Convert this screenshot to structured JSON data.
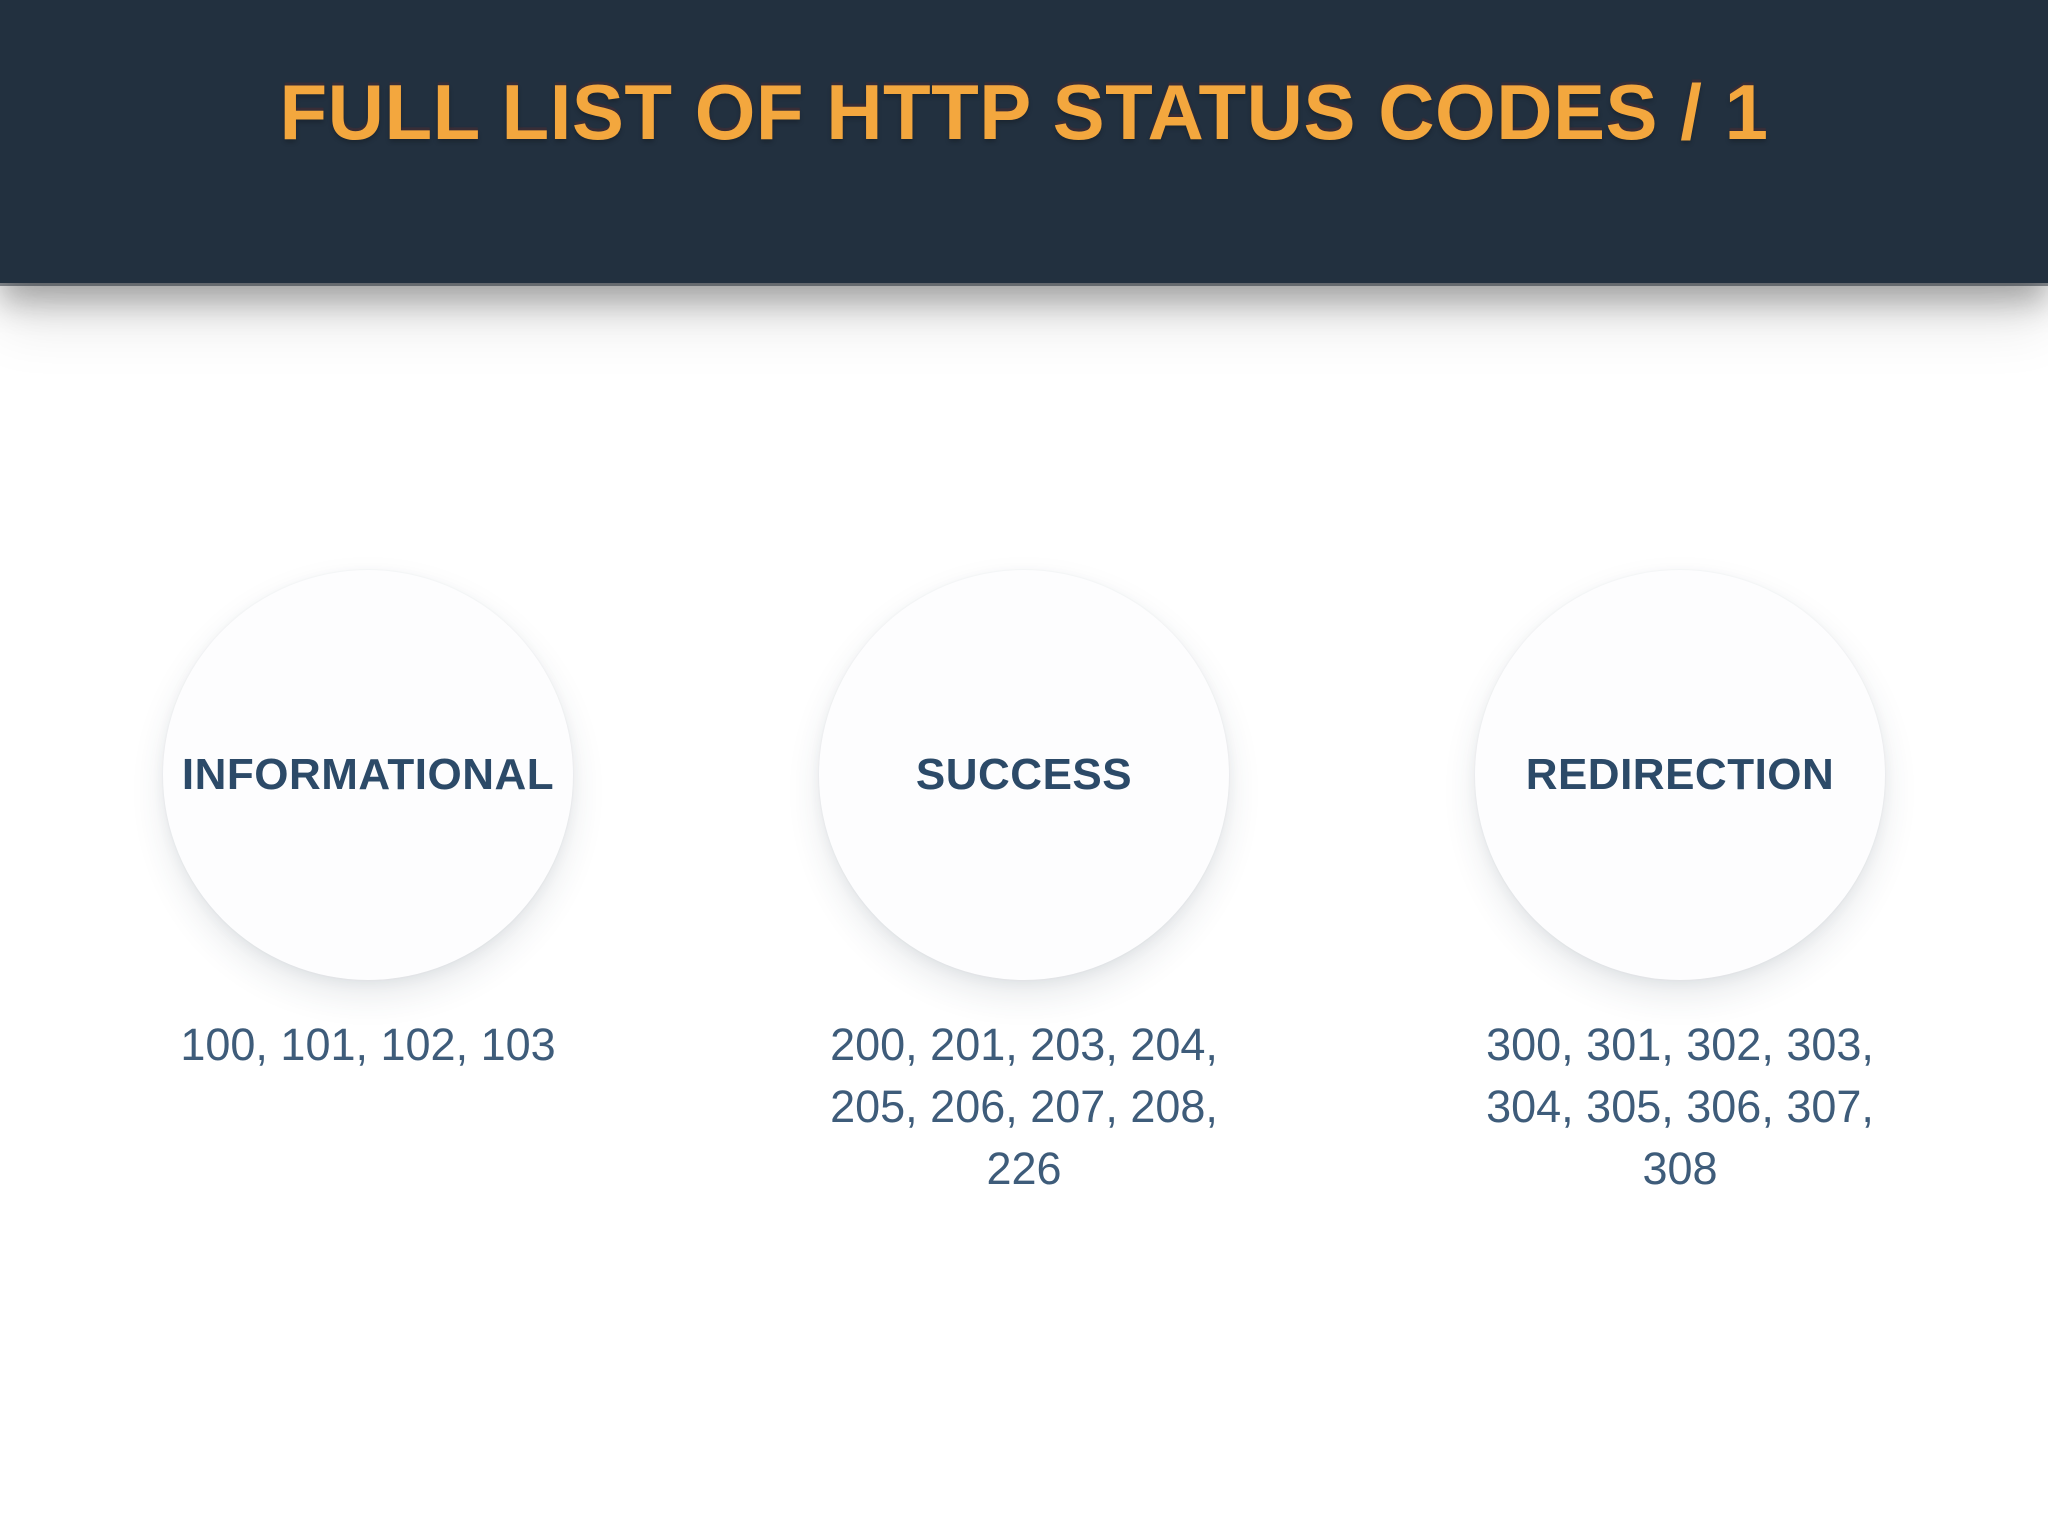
{
  "header": {
    "title": "FULL LIST OF HTTP STATUS CODES / 1"
  },
  "colors": {
    "header_bg": "#22303F",
    "title_text": "#F3A73E",
    "category_label": "#2C4A68",
    "codes_text": "#3E5C7A",
    "circle_fill": "#FDFDFE",
    "page_bg": "#FFFFFF"
  },
  "categories": [
    {
      "label": "INFORMATIONAL",
      "codes": "100, 101, 102, 103"
    },
    {
      "label": "SUCCESS",
      "codes": "200, 201, 203, 204, 205, 206, 207, 208, 226"
    },
    {
      "label": "REDIRECTION",
      "codes": "300, 301, 302, 303, 304, 305, 306, 307, 308"
    }
  ]
}
